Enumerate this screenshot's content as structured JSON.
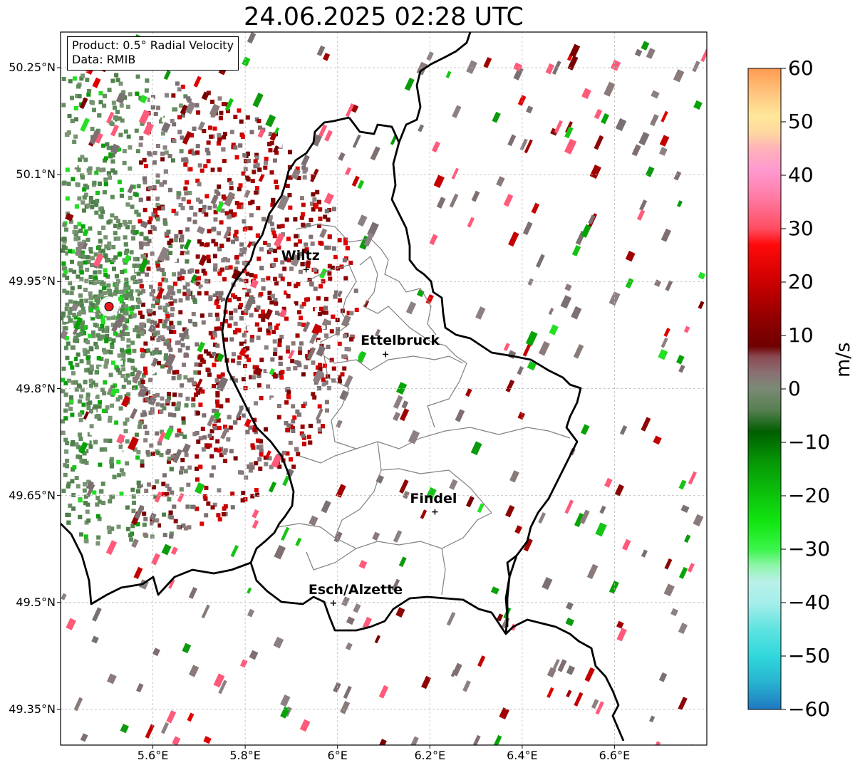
{
  "title": "24.06.2025 02:28 UTC",
  "info": {
    "product_line": "Product: 0.5° Radial Velocity",
    "data_line": "Data: RMIB"
  },
  "map": {
    "lon_range": [
      5.4,
      6.8
    ],
    "lat_range": [
      49.3,
      50.3
    ],
    "lat_ticks": [
      {
        "value": 50.25,
        "label": "50.25°N"
      },
      {
        "value": 50.1,
        "label": "50.1°N"
      },
      {
        "value": 49.95,
        "label": "49.95°N"
      },
      {
        "value": 49.8,
        "label": "49.8°N"
      },
      {
        "value": 49.65,
        "label": "49.65°N"
      },
      {
        "value": 49.5,
        "label": "49.5°N"
      },
      {
        "value": 49.35,
        "label": "49.35°N"
      }
    ],
    "lon_ticks": [
      {
        "value": 5.6,
        "label": "5.6°E"
      },
      {
        "value": 5.8,
        "label": "5.8°E"
      },
      {
        "value": 6.0,
        "label": "6°E"
      },
      {
        "value": 6.2,
        "label": "6.2°E"
      },
      {
        "value": 6.4,
        "label": "6.4°E"
      },
      {
        "value": 6.6,
        "label": "6.6°E"
      }
    ],
    "radar_site": {
      "lon": 5.505,
      "lat": 49.915,
      "color": "#e8191e"
    },
    "cities": [
      {
        "name": "Wiltz",
        "lon": 5.932,
        "lat": 49.967
      },
      {
        "name": "Ettelbruck",
        "lon": 6.104,
        "lat": 49.848
      },
      {
        "name": "Findel",
        "lon": 6.211,
        "lat": 49.627
      },
      {
        "name": "Esch/Alzette",
        "lon": 5.991,
        "lat": 49.499
      }
    ],
    "colors": {
      "border": "#000000",
      "canton": "#808080",
      "grid": "#bbbbbb"
    }
  },
  "colorbar": {
    "unit": "m/s",
    "min": -60,
    "max": 60,
    "ticks": [
      {
        "value": 60,
        "label": "60"
      },
      {
        "value": 50,
        "label": "50"
      },
      {
        "value": 40,
        "label": "40"
      },
      {
        "value": 30,
        "label": "30"
      },
      {
        "value": 20,
        "label": "20"
      },
      {
        "value": 10,
        "label": "10"
      },
      {
        "value": 0,
        "label": "0"
      },
      {
        "value": -10,
        "label": "−10"
      },
      {
        "value": -20,
        "label": "−20"
      },
      {
        "value": -30,
        "label": "−30"
      },
      {
        "value": -40,
        "label": "−40"
      },
      {
        "value": -50,
        "label": "−50"
      },
      {
        "value": -60,
        "label": "−60"
      }
    ],
    "stops": [
      {
        "value": -60,
        "color": "#1f78c0"
      },
      {
        "value": -55,
        "color": "#27b2d0"
      },
      {
        "value": -50,
        "color": "#30d8dc"
      },
      {
        "value": -45,
        "color": "#5ee3e0"
      },
      {
        "value": -40,
        "color": "#a6eeea"
      },
      {
        "value": -36,
        "color": "#b8f0e8"
      },
      {
        "value": -33,
        "color": "#8ef5a8"
      },
      {
        "value": -30,
        "color": "#3af54a"
      },
      {
        "value": -25,
        "color": "#12e612"
      },
      {
        "value": -20,
        "color": "#0cc40c"
      },
      {
        "value": -14,
        "color": "#069a06"
      },
      {
        "value": -8,
        "color": "#005e00"
      },
      {
        "value": -4,
        "color": "#557f50"
      },
      {
        "value": 0,
        "color": "#7a8a74"
      },
      {
        "value": 3,
        "color": "#8a7074"
      },
      {
        "value": 6,
        "color": "#8a4a52"
      },
      {
        "value": 8,
        "color": "#700000"
      },
      {
        "value": 13,
        "color": "#900000"
      },
      {
        "value": 20,
        "color": "#cc0000"
      },
      {
        "value": 27,
        "color": "#ff0a0a"
      },
      {
        "value": 30,
        "color": "#ff4d62"
      },
      {
        "value": 36,
        "color": "#ff7ca6"
      },
      {
        "value": 41,
        "color": "#ff9ad0"
      },
      {
        "value": 45,
        "color": "#ffb2b8"
      },
      {
        "value": 48,
        "color": "#ffd8a0"
      },
      {
        "value": 51,
        "color": "#ffe89a"
      },
      {
        "value": 55,
        "color": "#ffc882"
      },
      {
        "value": 60,
        "color": "#ff9a50"
      }
    ]
  }
}
